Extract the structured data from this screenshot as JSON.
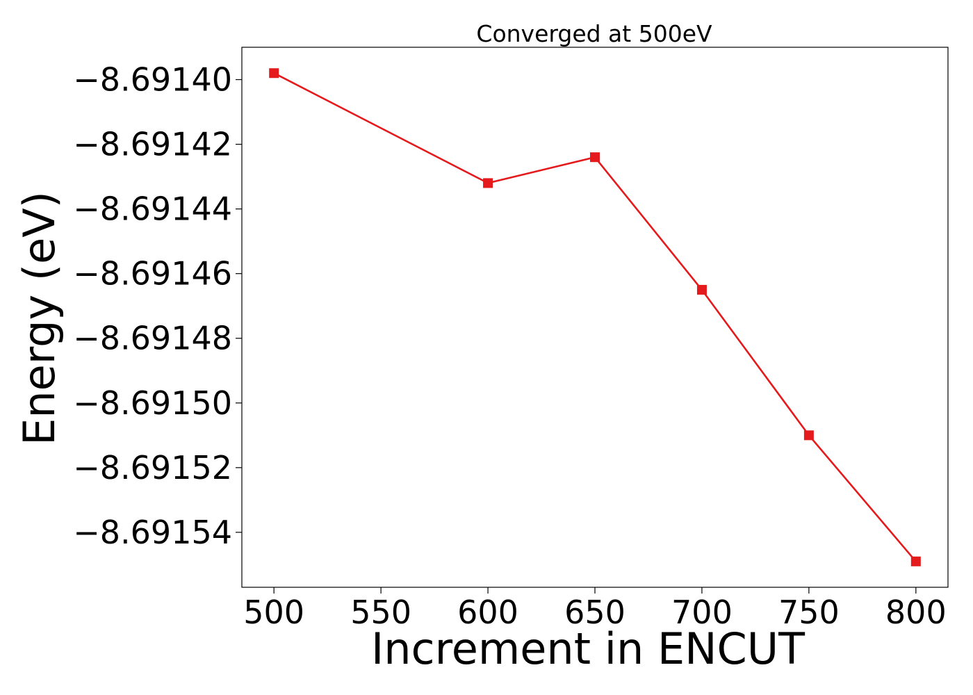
{
  "chart_data": {
    "type": "line",
    "title": "Converged at 500eV",
    "xlabel": "Increment in ENCUT",
    "ylabel": "Energy (eV)",
    "x": [
      500,
      600,
      650,
      700,
      750,
      800
    ],
    "series": [
      {
        "values": [
          -8.691398,
          -8.691432,
          -8.691424,
          -8.691465,
          -8.69151,
          -8.691549
        ],
        "color": "#e41a1c",
        "marker": "square"
      }
    ],
    "xlim": [
      485,
      815
    ],
    "ylim": [
      -8.691557,
      -8.69139
    ],
    "xticks": [
      500,
      550,
      600,
      650,
      700,
      750,
      800
    ],
    "xtick_labels": [
      "500",
      "550",
      "600",
      "650",
      "700",
      "750",
      "800"
    ],
    "yticks": [
      -8.6914,
      -8.69142,
      -8.69144,
      -8.69146,
      -8.69148,
      -8.6915,
      -8.69152,
      -8.69154
    ],
    "ytick_labels": [
      "−8.69140",
      "−8.69142",
      "−8.69144",
      "−8.69146",
      "−8.69148",
      "−8.69150",
      "−8.69152",
      "−8.69154"
    ],
    "grid": false,
    "legend": "none"
  }
}
